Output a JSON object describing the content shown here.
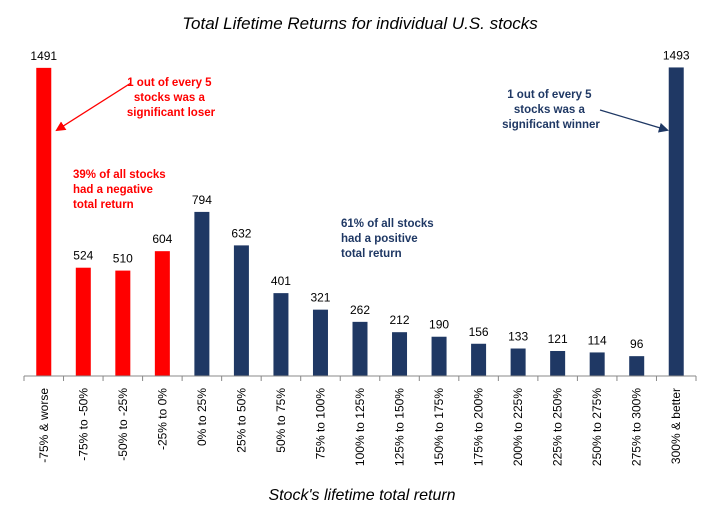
{
  "chart_data": {
    "type": "bar",
    "title": "Total Lifetime Returns for individual U.S. stocks",
    "xlabel": "Stock's lifetime total return",
    "ylabel": "",
    "ylim": [
      0,
      1500
    ],
    "grid": false,
    "categories": [
      "-75% & worse",
      "-75% to -50%",
      "-50% to -25%",
      "-25% to 0%",
      "0% to 25%",
      "25% to 50%",
      "50% to 75%",
      "75% to 100%",
      "100% to 125%",
      "125% to 150%",
      "150% to 175%",
      "175% to 200%",
      "200% to 225%",
      "225% to 250%",
      "250% to 275%",
      "275% to 300%",
      "300% & better"
    ],
    "values": [
      1491,
      524,
      510,
      604,
      794,
      632,
      401,
      321,
      262,
      212,
      190,
      156,
      133,
      121,
      114,
      96,
      1493
    ],
    "colors": {
      "negative": "#ff0000",
      "positive": "#1f3864"
    },
    "negative_count": 4,
    "annotations": {
      "loser": [
        "1 out of every 5",
        "stocks was a",
        "significant loser"
      ],
      "negative_share": [
        "39% of all stocks",
        "had a negative",
        "total return"
      ],
      "positive_share": [
        "61% of all stocks",
        "had a positive",
        "total return"
      ],
      "winner": [
        "1 out of every 5",
        "stocks was a",
        "significant  winner"
      ]
    }
  }
}
